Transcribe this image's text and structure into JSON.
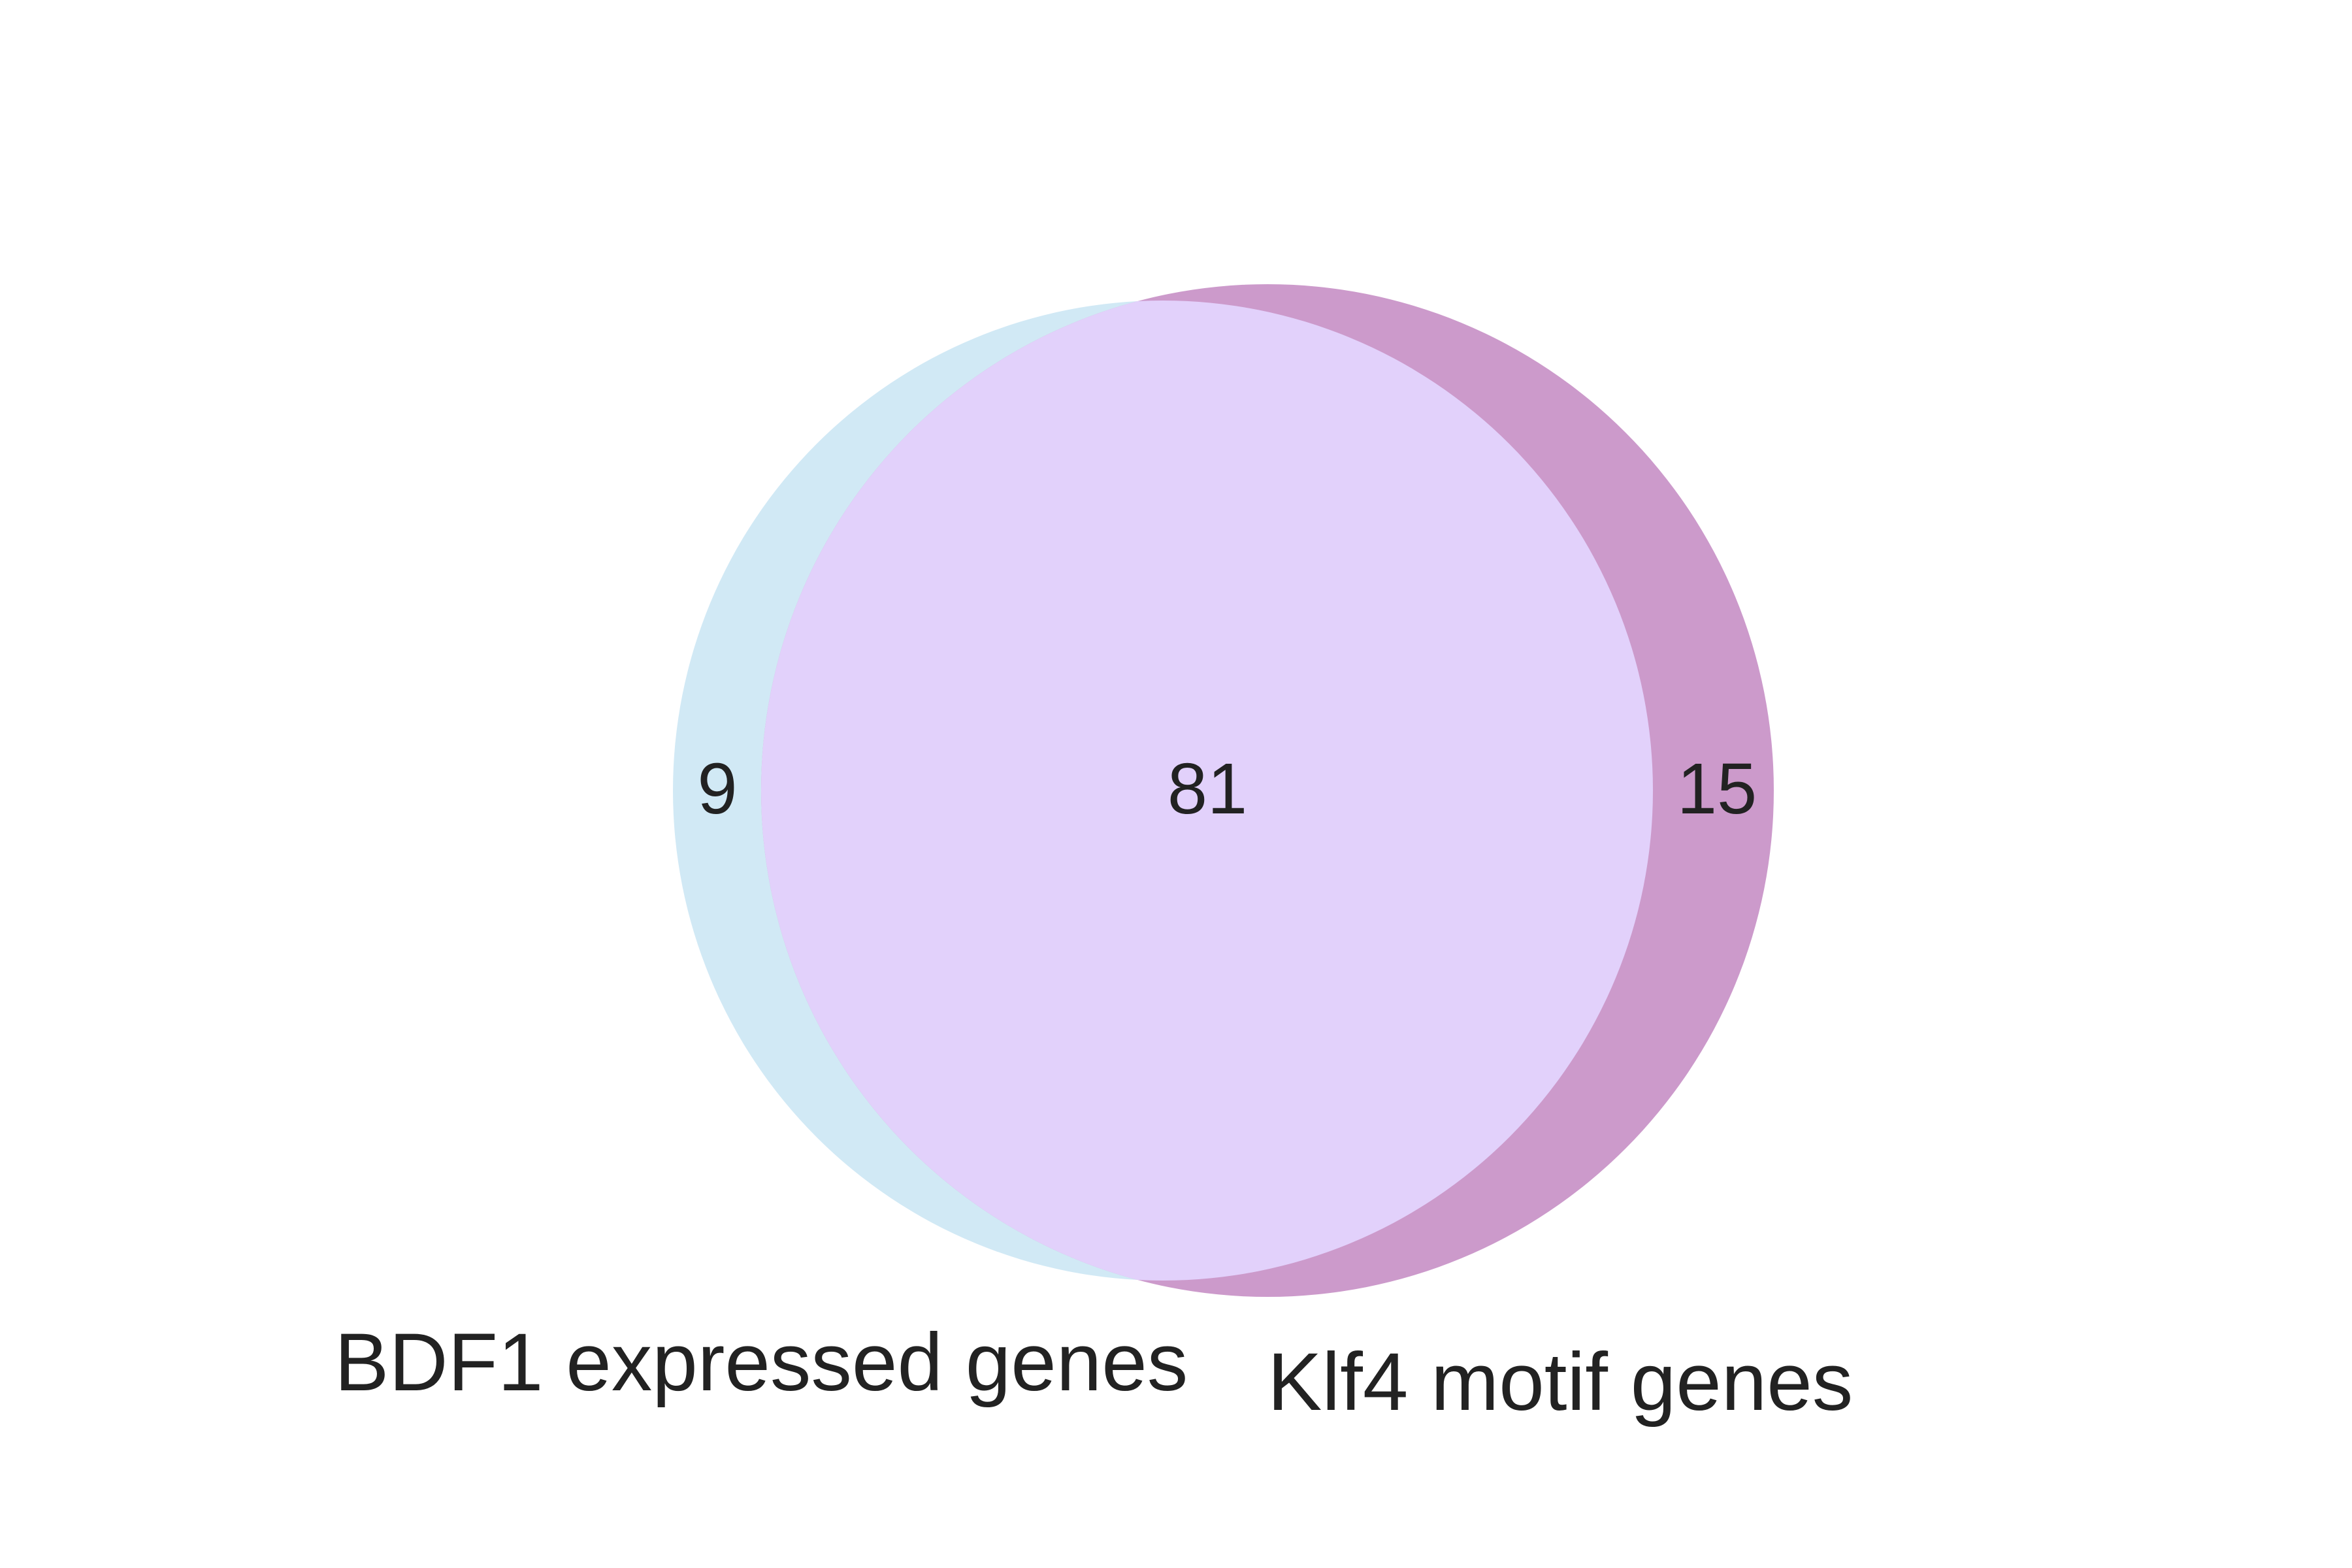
{
  "sets": [
    {
      "id": "left",
      "label": "BDF1 expressed genes",
      "only_count": "9",
      "color": "#d1e9f5"
    },
    {
      "id": "right",
      "label": "Klf4 motif genes",
      "only_count": "15",
      "color": "#cc9acb"
    }
  ],
  "intersection": {
    "count": "81",
    "color": "#e2d1fb"
  }
}
